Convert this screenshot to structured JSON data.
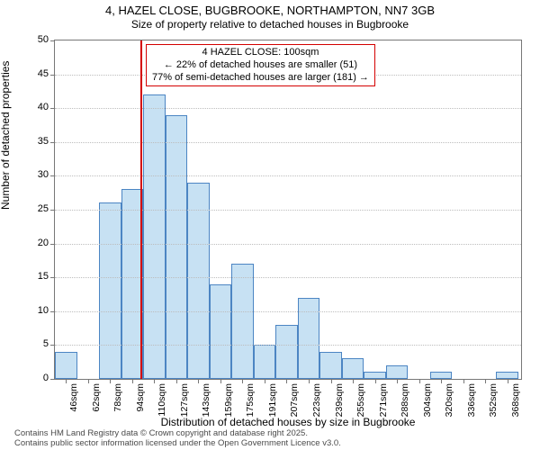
{
  "title_main": "4, HAZEL CLOSE, BUGBROOKE, NORTHAMPTON, NN7 3GB",
  "title_sub": "Size of property relative to detached houses in Bugbrooke",
  "ylabel": "Number of detached properties",
  "xlabel": "Distribution of detached houses by size in Bugbrooke",
  "footer_line1": "Contains HM Land Registry data © Crown copyright and database right 2025.",
  "footer_line2": "Contains public sector information licensed under the Open Government Licence v3.0.",
  "annotation": {
    "line1": "4 HAZEL CLOSE: 100sqm",
    "line2": "← 22% of detached houses are smaller (51)",
    "line3": "77% of semi-detached houses are larger (181) →"
  },
  "chart": {
    "type": "histogram",
    "ylim": [
      0,
      50
    ],
    "ytick_step": 5,
    "yticks": [
      0,
      5,
      10,
      15,
      20,
      25,
      30,
      35,
      40,
      45,
      50
    ],
    "marker_x": 100,
    "x_min": 38,
    "x_max": 376,
    "bin_width": 16,
    "bar_color": "#c7e1f3",
    "bar_border": "#4c85c3",
    "marker_color": "#d40000",
    "grid_color": "#bdbdbd",
    "axis_color": "#777777",
    "background_color": "#ffffff",
    "title_fontsize": 13,
    "label_fontsize": 12,
    "tick_fontsize": 11,
    "bars": [
      {
        "x0": 38,
        "x1": 54,
        "count": 4,
        "label": "46sqm"
      },
      {
        "x0": 54,
        "x1": 70,
        "count": 0,
        "label": "62sqm"
      },
      {
        "x0": 70,
        "x1": 86,
        "count": 26,
        "label": "78sqm"
      },
      {
        "x0": 86,
        "x1": 102,
        "count": 28,
        "label": "94sqm"
      },
      {
        "x0": 102,
        "x1": 118,
        "count": 42,
        "label": "110sqm"
      },
      {
        "x0": 118,
        "x1": 134,
        "count": 39,
        "label": "127sqm"
      },
      {
        "x0": 134,
        "x1": 150,
        "count": 29,
        "label": "143sqm"
      },
      {
        "x0": 150,
        "x1": 166,
        "count": 14,
        "label": "159sqm"
      },
      {
        "x0": 166,
        "x1": 182,
        "count": 17,
        "label": "175sqm"
      },
      {
        "x0": 182,
        "x1": 198,
        "count": 5,
        "label": "191sqm"
      },
      {
        "x0": 198,
        "x1": 214,
        "count": 8,
        "label": "207sqm"
      },
      {
        "x0": 214,
        "x1": 230,
        "count": 12,
        "label": "223sqm"
      },
      {
        "x0": 230,
        "x1": 246,
        "count": 4,
        "label": "239sqm"
      },
      {
        "x0": 246,
        "x1": 262,
        "count": 3,
        "label": "255sqm"
      },
      {
        "x0": 262,
        "x1": 278,
        "count": 1,
        "label": "271sqm"
      },
      {
        "x0": 278,
        "x1": 294,
        "count": 2,
        "label": "288sqm"
      },
      {
        "x0": 294,
        "x1": 310,
        "count": 0,
        "label": "304sqm"
      },
      {
        "x0": 310,
        "x1": 326,
        "count": 1,
        "label": "320sqm"
      },
      {
        "x0": 326,
        "x1": 342,
        "count": 0,
        "label": "336sqm"
      },
      {
        "x0": 342,
        "x1": 358,
        "count": 0,
        "label": "352sqm"
      },
      {
        "x0": 358,
        "x1": 374,
        "count": 1,
        "label": "368sqm"
      }
    ]
  }
}
